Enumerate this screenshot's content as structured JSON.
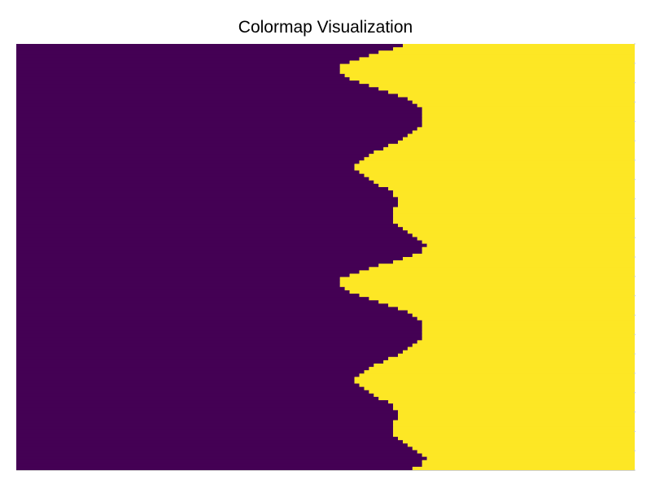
{
  "chart_data": {
    "type": "heatmap",
    "title": "Colormap Visualization",
    "xlabel": "",
    "ylabel": "",
    "n_columns": 128,
    "n_rows": 128,
    "description_of_values": "binary",
    "colormap": {
      "low": "#440154",
      "high": "#FDE725"
    },
    "row_threshold_column": [
      80,
      78,
      75,
      73,
      71,
      69,
      67,
      67,
      67,
      68,
      69,
      71,
      73,
      75,
      77,
      79,
      81,
      82,
      83,
      84,
      84,
      84,
      84,
      84,
      84,
      83,
      82,
      81,
      80,
      79,
      77,
      76,
      74,
      73,
      72,
      71,
      70,
      70,
      71,
      72,
      73,
      74,
      75,
      77,
      78,
      78,
      79,
      79,
      79,
      78,
      78,
      78,
      78,
      78,
      79,
      80,
      81,
      82,
      83,
      84,
      85,
      84,
      84,
      82,
      80,
      78,
      75,
      73,
      71,
      69,
      67,
      67,
      67,
      68,
      69,
      71,
      73,
      75,
      77,
      79,
      81,
      82,
      83,
      84,
      84,
      84,
      84,
      84,
      84,
      83,
      82,
      81,
      80,
      79,
      77,
      76,
      74,
      73,
      72,
      71,
      70,
      70,
      71,
      72,
      73,
      74,
      75,
      77,
      78,
      78,
      79,
      79,
      79,
      78,
      78,
      78,
      78,
      78,
      79,
      80,
      81,
      82,
      83,
      84,
      85,
      84,
      84,
      82
    ],
    "grid": false,
    "legend": "none"
  }
}
